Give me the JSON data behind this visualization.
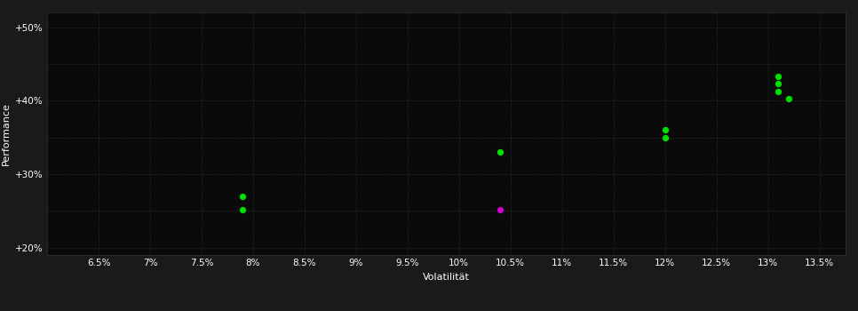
{
  "background_color": "#1a1a1a",
  "plot_bg_color": "#0a0a0a",
  "grid_color": "#333333",
  "grid_linestyle": ":",
  "xlabel": "Volatilität",
  "ylabel": "Performance",
  "xlim": [
    0.06,
    0.1375
  ],
  "ylim": [
    0.19,
    0.52
  ],
  "xticks": [
    0.065,
    0.07,
    0.075,
    0.08,
    0.085,
    0.09,
    0.095,
    0.1,
    0.105,
    0.11,
    0.115,
    0.12,
    0.125,
    0.13,
    0.135
  ],
  "yticks": [
    0.2,
    0.25,
    0.3,
    0.35,
    0.4,
    0.45,
    0.5
  ],
  "green_points": [
    [
      0.079,
      0.27
    ],
    [
      0.079,
      0.252
    ],
    [
      0.104,
      0.33
    ],
    [
      0.12,
      0.36
    ],
    [
      0.12,
      0.35
    ],
    [
      0.131,
      0.433
    ],
    [
      0.131,
      0.423
    ],
    [
      0.131,
      0.413
    ],
    [
      0.132,
      0.403
    ]
  ],
  "magenta_points": [
    [
      0.104,
      0.252
    ]
  ],
  "green_color": "#00dd00",
  "magenta_color": "#cc00cc",
  "marker_size": 28,
  "text_color": "#ffffff",
  "label_fontsize": 8,
  "tick_fontsize": 7.5,
  "ytick_labels": [
    "+20%",
    "",
    "+30%",
    "",
    "+40%",
    "",
    "+50%"
  ]
}
